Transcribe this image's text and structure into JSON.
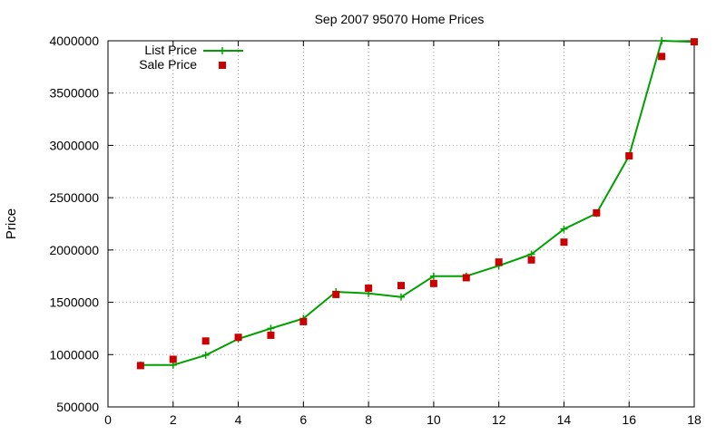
{
  "chart_data": {
    "type": "line",
    "title": "Sep 2007 95070 Home Prices",
    "ylabel": "Price",
    "xlabel": "",
    "xlim": [
      0,
      18
    ],
    "ylim": [
      500000,
      4000000
    ],
    "x_ticks": [
      "0",
      "2",
      "4",
      "6",
      "8",
      "10",
      "12",
      "14",
      "16",
      "18"
    ],
    "y_ticks": [
      "500000",
      "1000000",
      "1500000",
      "2000000",
      "2500000",
      "3000000",
      "3500000",
      "4000000"
    ],
    "grid": true,
    "legend_position": "top-left",
    "series": [
      {
        "name": "List Price",
        "style": "line-with-plus-markers",
        "color": "#00a000",
        "x": [
          1,
          2,
          3,
          4,
          5,
          6,
          7,
          8,
          9,
          10,
          11,
          12,
          13,
          14,
          15,
          16,
          17,
          18
        ],
        "values": [
          900000,
          900000,
          995000,
          1150000,
          1250000,
          1345000,
          1600000,
          1585000,
          1550000,
          1750000,
          1750000,
          1850000,
          1960000,
          2200000,
          2350000,
          2900000,
          4000000,
          3990000
        ]
      },
      {
        "name": "Sale Price",
        "style": "square-markers",
        "color": "#cc0000",
        "x": [
          1,
          2,
          3,
          4,
          5,
          6,
          7,
          8,
          9,
          10,
          11,
          12,
          13,
          14,
          15,
          16,
          17,
          18
        ],
        "values": [
          895000,
          955000,
          1130000,
          1165000,
          1185000,
          1315000,
          1575000,
          1635000,
          1660000,
          1680000,
          1735000,
          1885000,
          1905000,
          2075000,
          2355000,
          2900000,
          3850000,
          3990000
        ]
      }
    ]
  }
}
